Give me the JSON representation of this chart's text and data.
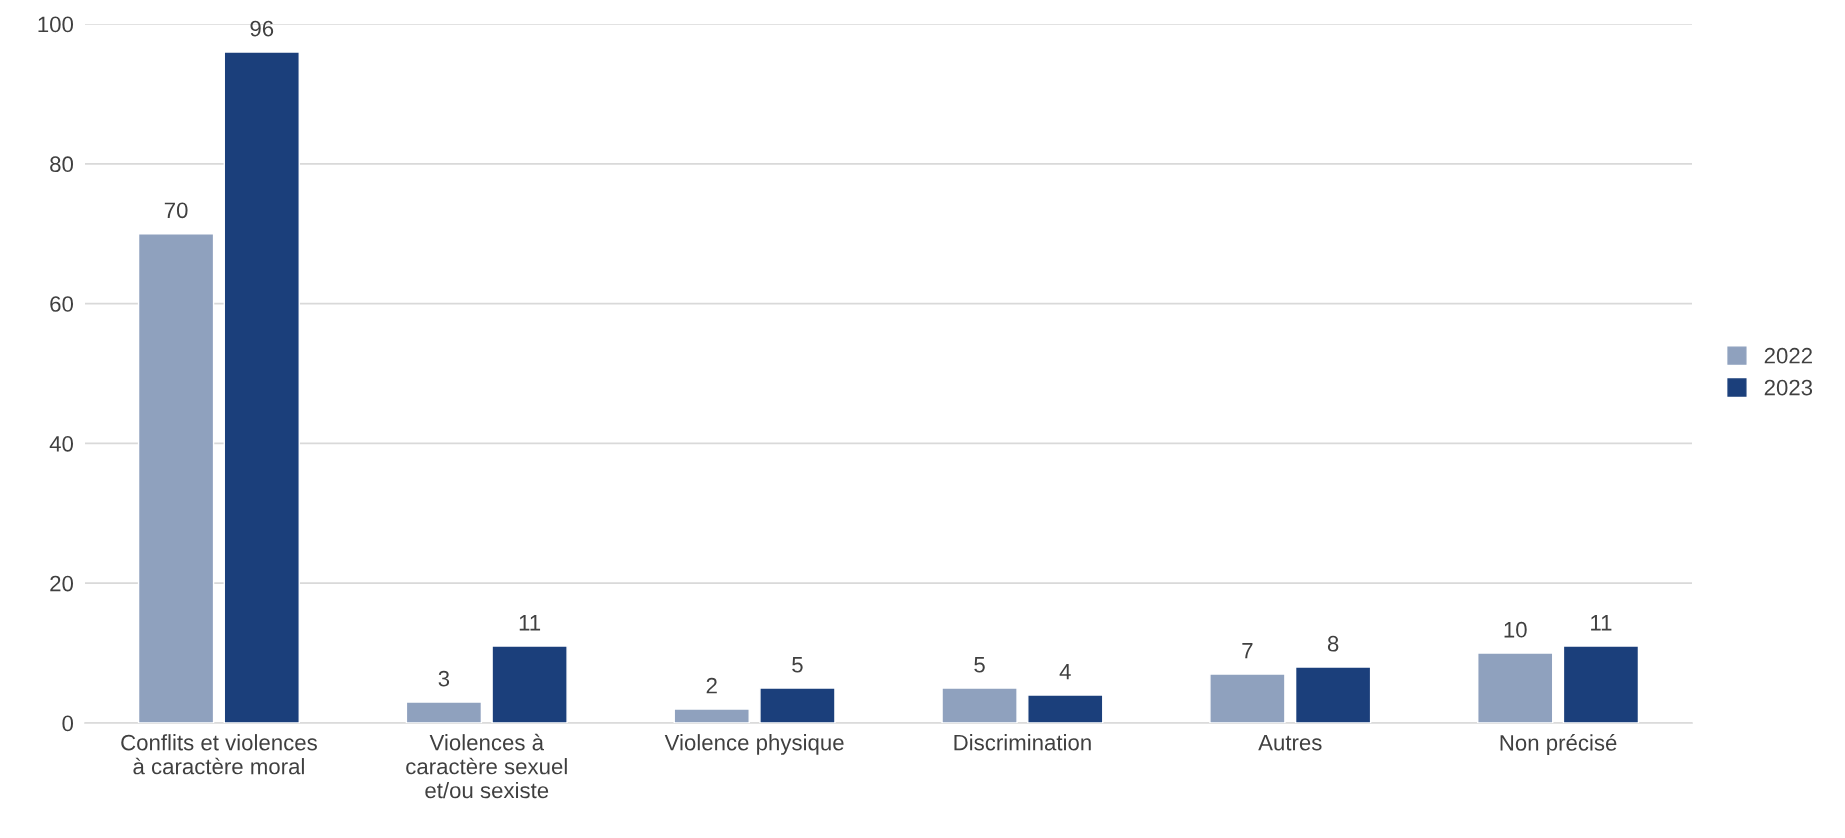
{
  "chart_data": {
    "type": "bar",
    "categories": [
      "Conflits et violences\nà caractère moral",
      "Violences à\ncaractère sexuel\net/ou sexiste",
      "Violence physique",
      "Discrimination",
      "Autres",
      "Non précisé"
    ],
    "series": [
      {
        "name": "2022",
        "color": "#8fa1be",
        "values": [
          70,
          3,
          2,
          5,
          7,
          10
        ]
      },
      {
        "name": "2023",
        "color": "#1b3f7b",
        "values": [
          96,
          11,
          5,
          4,
          8,
          11
        ]
      }
    ],
    "ylim": [
      0,
      100
    ],
    "yticks": [
      0,
      20,
      40,
      60,
      80,
      100
    ],
    "grid": "y",
    "legend": "right",
    "data_labels": true
  }
}
